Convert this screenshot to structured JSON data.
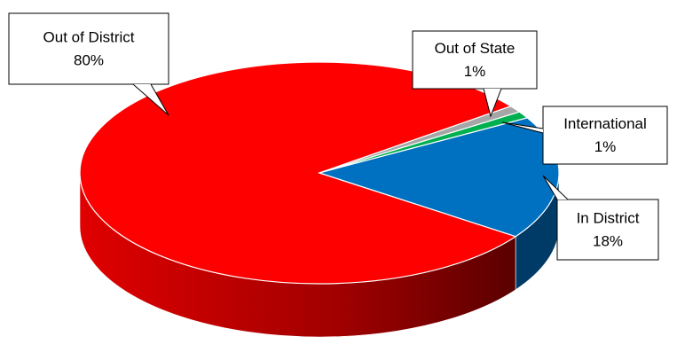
{
  "chart_data": {
    "type": "pie",
    "categories": [
      "Out of District",
      "Out of State",
      "International",
      "In District"
    ],
    "values": [
      80,
      1,
      1,
      18
    ],
    "value_labels": [
      "80%",
      "1%",
      "1%",
      "18%"
    ],
    "colors": [
      "#ff0000",
      "#a6a6a6",
      "#00b050",
      "#0070c0"
    ]
  }
}
